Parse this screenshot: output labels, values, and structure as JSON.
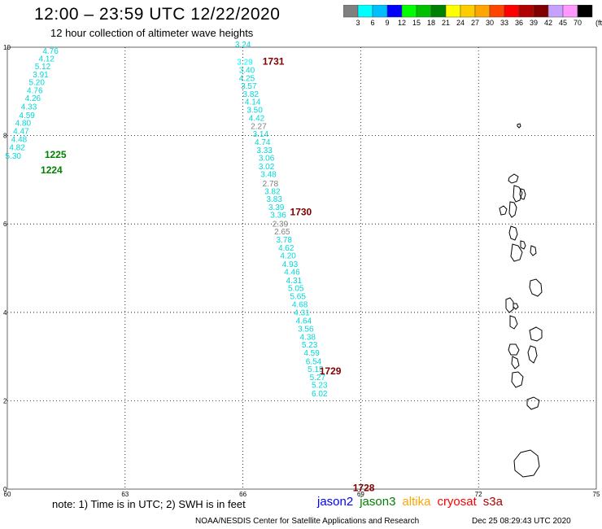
{
  "header": {
    "title": "12:00 – 23:59 UTC 12/22/2020",
    "subtitle": "12 hour collection of altimeter wave heights"
  },
  "legend": {
    "unit": "(ft)",
    "labels": [
      "3",
      "6",
      "9",
      "12",
      "15",
      "18",
      "21",
      "24",
      "27",
      "30",
      "33",
      "36",
      "39",
      "42",
      "45",
      "70"
    ],
    "colors": [
      "#808080",
      "#00ffff",
      "#00bfff",
      "#0000ff",
      "#00ff00",
      "#00c000",
      "#008000",
      "#ffff00",
      "#ffcc00",
      "#ffa500",
      "#ff4500",
      "#ff0000",
      "#b00000",
      "#800000",
      "#c8a0ff",
      "#ff99ff",
      "#000000"
    ]
  },
  "map": {
    "lon_range": [
      60,
      75
    ],
    "lat_range": [
      0,
      10
    ],
    "x_ticks": [
      "60",
      "63",
      "66",
      "69",
      "72",
      "75"
    ],
    "y_ticks": [
      "0",
      "2",
      "4",
      "6",
      "8",
      "10"
    ],
    "passes": [
      {
        "label": "1225",
        "color": "#008000",
        "lon": 60.95,
        "lat": 7.5
      },
      {
        "label": "1224",
        "color": "#008000",
        "lon": 60.85,
        "lat": 7.15
      },
      {
        "label": "1731",
        "color": "#800000",
        "lon": 66.5,
        "lat": 9.6
      },
      {
        "label": "1730",
        "color": "#800000",
        "lon": 67.2,
        "lat": 6.2
      },
      {
        "label": "1729",
        "color": "#800000",
        "lon": 67.95,
        "lat": 2.6
      },
      {
        "label": "1728",
        "color": "#800000",
        "lon": 68.8,
        "lat": -0.05
      }
    ],
    "track_west": [
      {
        "v": "4.76",
        "lon": 61.1,
        "lat": 9.85
      },
      {
        "v": "4.12",
        "lon": 61.0,
        "lat": 9.68
      },
      {
        "v": "5.12",
        "lon": 60.9,
        "lat": 9.5
      },
      {
        "v": "3.91",
        "lon": 60.85,
        "lat": 9.32
      },
      {
        "v": "5.20",
        "lon": 60.75,
        "lat": 9.14
      },
      {
        "v": "4.76",
        "lon": 60.7,
        "lat": 8.96
      },
      {
        "v": "4.26",
        "lon": 60.65,
        "lat": 8.78
      },
      {
        "v": "4.33",
        "lon": 60.55,
        "lat": 8.59
      },
      {
        "v": "4.59",
        "lon": 60.5,
        "lat": 8.4
      },
      {
        "v": "4.80",
        "lon": 60.4,
        "lat": 8.22
      },
      {
        "v": "4.47",
        "lon": 60.35,
        "lat": 8.04
      },
      {
        "v": "4.48",
        "lon": 60.3,
        "lat": 7.85
      },
      {
        "v": "4.82",
        "lon": 60.25,
        "lat": 7.67
      },
      {
        "v": "5.30",
        "lon": 60.15,
        "lat": 7.48
      }
    ],
    "track_east": [
      {
        "v": "3.24",
        "lon": 66.0,
        "lat": 10.0
      },
      {
        "v": "3.29",
        "lon": 66.05,
        "lat": 9.6,
        "c": "#00ffff"
      },
      {
        "v": "3.40",
        "lon": 66.1,
        "lat": 9.42
      },
      {
        "v": "4.25",
        "lon": 66.1,
        "lat": 9.24
      },
      {
        "v": "3.57",
        "lon": 66.15,
        "lat": 9.06
      },
      {
        "v": "3.82",
        "lon": 66.2,
        "lat": 8.88
      },
      {
        "v": "4.14",
        "lon": 66.25,
        "lat": 8.7
      },
      {
        "v": "3.50",
        "lon": 66.3,
        "lat": 8.52
      },
      {
        "v": "4.42",
        "lon": 66.35,
        "lat": 8.33
      },
      {
        "v": "2.27",
        "lon": 66.4,
        "lat": 8.15,
        "c": "#808080"
      },
      {
        "v": "3.14",
        "lon": 66.45,
        "lat": 7.97
      },
      {
        "v": "4.74",
        "lon": 66.5,
        "lat": 7.79
      },
      {
        "v": "3.33",
        "lon": 66.55,
        "lat": 7.61
      },
      {
        "v": "3.06",
        "lon": 66.6,
        "lat": 7.43
      },
      {
        "v": "3.02",
        "lon": 66.6,
        "lat": 7.24
      },
      {
        "v": "3.48",
        "lon": 66.65,
        "lat": 7.06
      },
      {
        "v": "2.78",
        "lon": 66.7,
        "lat": 6.85,
        "c": "#808080"
      },
      {
        "v": "3.82",
        "lon": 66.75,
        "lat": 6.68
      },
      {
        "v": "3.83",
        "lon": 66.8,
        "lat": 6.5
      },
      {
        "v": "3.39",
        "lon": 66.85,
        "lat": 6.32
      },
      {
        "v": "3.36",
        "lon": 66.9,
        "lat": 6.14
      },
      {
        "v": "2.39",
        "lon": 66.95,
        "lat": 5.94,
        "c": "#808080"
      },
      {
        "v": "2.65",
        "lon": 67.0,
        "lat": 5.76,
        "c": "#808080"
      },
      {
        "v": "3.78",
        "lon": 67.05,
        "lat": 5.58
      },
      {
        "v": "4.62",
        "lon": 67.1,
        "lat": 5.4
      },
      {
        "v": "4.20",
        "lon": 67.15,
        "lat": 5.22
      },
      {
        "v": "4.93",
        "lon": 67.2,
        "lat": 5.03
      },
      {
        "v": "4.46",
        "lon": 67.25,
        "lat": 4.85
      },
      {
        "v": "4.31",
        "lon": 67.3,
        "lat": 4.66
      },
      {
        "v": "5.05",
        "lon": 67.35,
        "lat": 4.48
      },
      {
        "v": "5.65",
        "lon": 67.4,
        "lat": 4.3
      },
      {
        "v": "4.68",
        "lon": 67.45,
        "lat": 4.12
      },
      {
        "v": "4.31",
        "lon": 67.5,
        "lat": 3.93
      },
      {
        "v": "4.64",
        "lon": 67.55,
        "lat": 3.75
      },
      {
        "v": "3.56",
        "lon": 67.6,
        "lat": 3.56
      },
      {
        "v": "4.38",
        "lon": 67.65,
        "lat": 3.38
      },
      {
        "v": "5.23",
        "lon": 67.7,
        "lat": 3.2
      },
      {
        "v": "4.59",
        "lon": 67.75,
        "lat": 3.02
      },
      {
        "v": "6.54",
        "lon": 67.8,
        "lat": 2.83
      },
      {
        "v": "5.15",
        "lon": 67.85,
        "lat": 2.65
      },
      {
        "v": "5.27",
        "lon": 67.9,
        "lat": 2.47
      },
      {
        "v": "5.23",
        "lon": 67.95,
        "lat": 2.29
      },
      {
        "v": "6.02",
        "lon": 67.95,
        "lat": 2.1
      }
    ]
  },
  "footer": {
    "note": "note: 1) Time is in UTC; 2) SWH is in feet",
    "satellites": [
      {
        "name": "jason2",
        "color": "#0000ff"
      },
      {
        "name": "jason3",
        "color": "#008000"
      },
      {
        "name": "altika",
        "color": "#ffa500"
      },
      {
        "name": "cryosat",
        "color": "#ff0000"
      },
      {
        "name": "s3a",
        "color": "#b00000"
      }
    ],
    "credit": "NOAA/NESDIS Center for Satellite Applications and Research",
    "timestamp": "Dec 25 08:29:43 UTC 2020"
  }
}
